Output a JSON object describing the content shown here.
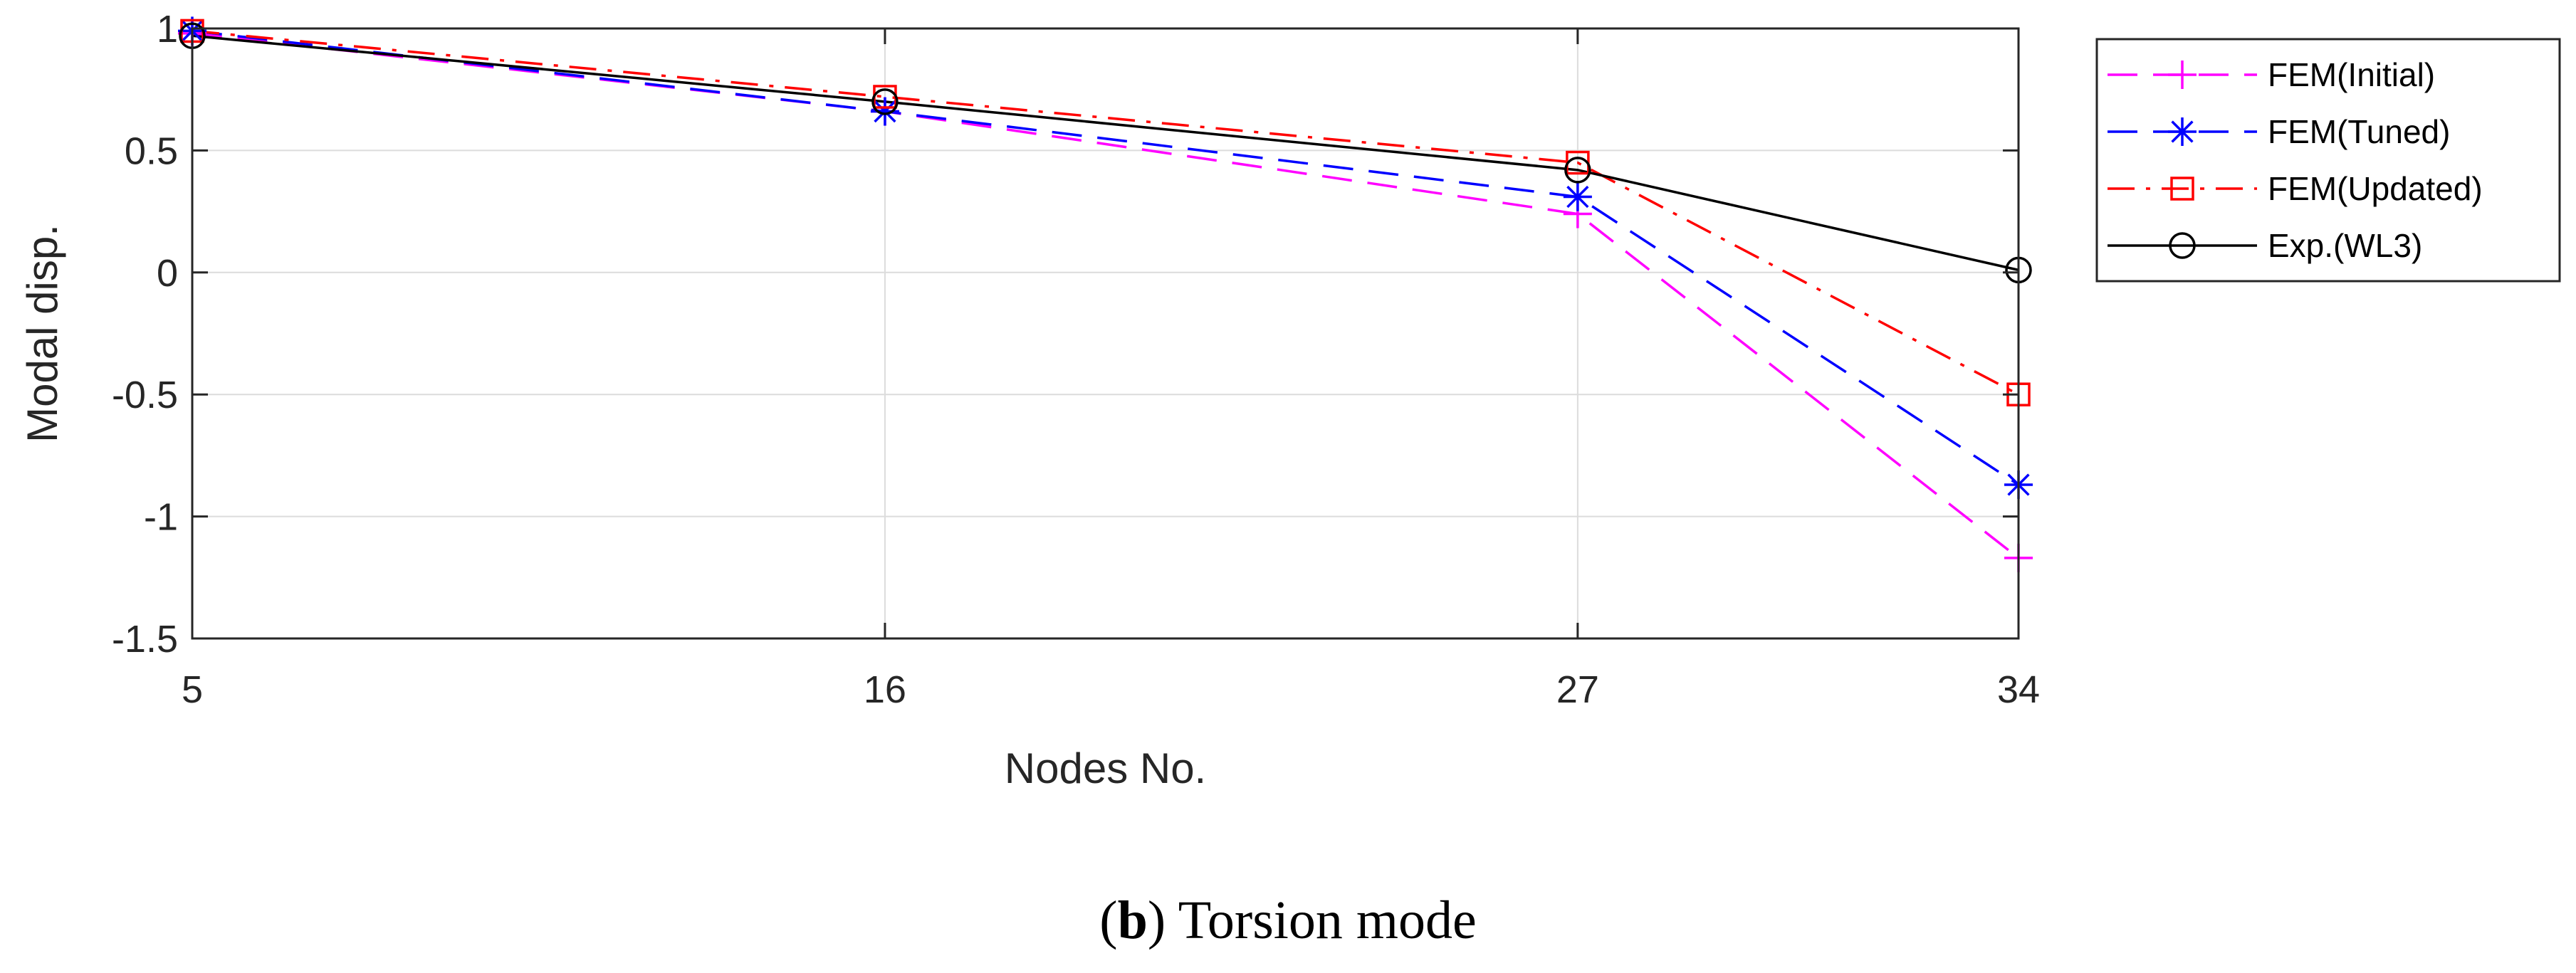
{
  "chart_data": {
    "type": "line",
    "title": "",
    "xlabel": "Nodes No.",
    "ylabel": "Modal disp.",
    "categories": [
      "5",
      "16",
      "27",
      "34"
    ],
    "x": [
      5,
      16,
      27,
      34
    ],
    "xticks": [
      "5",
      "16",
      "27",
      "34"
    ],
    "yticks": [
      "-1.5",
      "-1",
      "-0.5",
      "0",
      "0.5",
      "1"
    ],
    "ylim": [
      -1.5,
      1
    ],
    "grid": true,
    "legend_position": "outside-right-top",
    "series": [
      {
        "name": "FEM(Initial)",
        "values": [
          0.98,
          0.66,
          0.24,
          -1.17
        ],
        "color": "#ff00ff",
        "dash": "dashed",
        "marker": "plus"
      },
      {
        "name": "FEM(Tuned)",
        "values": [
          0.99,
          0.66,
          0.31,
          -0.87
        ],
        "color": "#0000ff",
        "dash": "dashed",
        "marker": "asterisk"
      },
      {
        "name": "FEM(Updated)",
        "values": [
          0.99,
          0.72,
          0.45,
          -0.5
        ],
        "color": "#ff0000",
        "dash": "dashdot",
        "marker": "square"
      },
      {
        "name": "Exp.(WL3)",
        "values": [
          0.97,
          0.7,
          0.42,
          0.01
        ],
        "color": "#000000",
        "dash": "solid",
        "marker": "circle"
      }
    ]
  },
  "caption": {
    "letter": "b",
    "text": " Torsion mode"
  }
}
